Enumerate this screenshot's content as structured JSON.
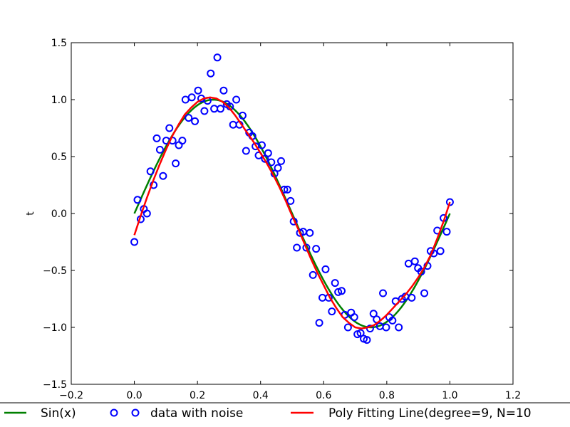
{
  "chart_data": {
    "type": "line",
    "title": "",
    "xlabel": "",
    "ylabel": "t",
    "xlim": [
      -0.2,
      1.2
    ],
    "ylim": [
      -1.5,
      1.5
    ],
    "grid": false,
    "legend_placement": "bottom",
    "x_ticks": [
      "−0.2",
      "0.0",
      "0.2",
      "0.4",
      "0.6",
      "0.8",
      "1.0",
      "1.2"
    ],
    "x_tick_values": [
      -0.2,
      0.0,
      0.2,
      0.4,
      0.6,
      0.8,
      1.0,
      1.2
    ],
    "y_ticks": [
      "1.5",
      "1.0",
      "0.5",
      "0.0",
      "−0.5",
      "−1.0",
      "−1.5"
    ],
    "y_tick_values": [
      1.5,
      1.0,
      0.5,
      0.0,
      -0.5,
      -1.0,
      -1.5
    ],
    "series": [
      {
        "name": "Sin(x)",
        "kind": "line",
        "color": "#008000",
        "function": "sin(2*pi*x)",
        "x_range": [
          0.0,
          1.0
        ]
      },
      {
        "name": "data with noise",
        "kind": "scatter",
        "color": "#0000ff",
        "points": [
          [
            0.0,
            -0.25
          ],
          [
            0.01,
            0.12
          ],
          [
            0.02,
            -0.05
          ],
          [
            0.03,
            0.04
          ],
          [
            0.04,
            0.0
          ],
          [
            0.051,
            0.37
          ],
          [
            0.061,
            0.25
          ],
          [
            0.071,
            0.66
          ],
          [
            0.081,
            0.56
          ],
          [
            0.091,
            0.33
          ],
          [
            0.101,
            0.64
          ],
          [
            0.111,
            0.75
          ],
          [
            0.121,
            0.64
          ],
          [
            0.131,
            0.44
          ],
          [
            0.141,
            0.6
          ],
          [
            0.152,
            0.64
          ],
          [
            0.162,
            1.0
          ],
          [
            0.172,
            0.84
          ],
          [
            0.182,
            1.02
          ],
          [
            0.192,
            0.81
          ],
          [
            0.202,
            1.08
          ],
          [
            0.212,
            1.01
          ],
          [
            0.222,
            0.9
          ],
          [
            0.232,
            0.99
          ],
          [
            0.242,
            1.23
          ],
          [
            0.253,
            0.92
          ],
          [
            0.263,
            1.37
          ],
          [
            0.273,
            0.92
          ],
          [
            0.283,
            1.08
          ],
          [
            0.293,
            0.96
          ],
          [
            0.303,
            0.94
          ],
          [
            0.313,
            0.78
          ],
          [
            0.323,
            1.0
          ],
          [
            0.333,
            0.78
          ],
          [
            0.343,
            0.86
          ],
          [
            0.354,
            0.55
          ],
          [
            0.364,
            0.71
          ],
          [
            0.374,
            0.68
          ],
          [
            0.384,
            0.59
          ],
          [
            0.394,
            0.51
          ],
          [
            0.404,
            0.6
          ],
          [
            0.414,
            0.48
          ],
          [
            0.424,
            0.53
          ],
          [
            0.434,
            0.45
          ],
          [
            0.444,
            0.35
          ],
          [
            0.455,
            0.4
          ],
          [
            0.465,
            0.46
          ],
          [
            0.475,
            0.21
          ],
          [
            0.485,
            0.21
          ],
          [
            0.495,
            0.11
          ],
          [
            0.505,
            -0.07
          ],
          [
            0.515,
            -0.3
          ],
          [
            0.525,
            -0.17
          ],
          [
            0.535,
            -0.16
          ],
          [
            0.545,
            -0.3
          ],
          [
            0.556,
            -0.17
          ],
          [
            0.566,
            -0.54
          ],
          [
            0.576,
            -0.31
          ],
          [
            0.586,
            -0.96
          ],
          [
            0.596,
            -0.74
          ],
          [
            0.606,
            -0.49
          ],
          [
            0.616,
            -0.74
          ],
          [
            0.626,
            -0.86
          ],
          [
            0.636,
            -0.61
          ],
          [
            0.646,
            -0.69
          ],
          [
            0.657,
            -0.68
          ],
          [
            0.667,
            -0.89
          ],
          [
            0.677,
            -1.0
          ],
          [
            0.687,
            -0.87
          ],
          [
            0.697,
            -0.91
          ],
          [
            0.707,
            -1.06
          ],
          [
            0.717,
            -1.05
          ],
          [
            0.727,
            -1.1
          ],
          [
            0.737,
            -1.11
          ],
          [
            0.747,
            -1.01
          ],
          [
            0.758,
            -0.88
          ],
          [
            0.768,
            -0.93
          ],
          [
            0.778,
            -0.99
          ],
          [
            0.788,
            -0.7
          ],
          [
            0.798,
            -1.0
          ],
          [
            0.808,
            -0.91
          ],
          [
            0.818,
            -0.94
          ],
          [
            0.828,
            -0.77
          ],
          [
            0.838,
            -1.0
          ],
          [
            0.848,
            -0.75
          ],
          [
            0.859,
            -0.73
          ],
          [
            0.869,
            -0.44
          ],
          [
            0.879,
            -0.74
          ],
          [
            0.889,
            -0.42
          ],
          [
            0.899,
            -0.48
          ],
          [
            0.909,
            -0.51
          ],
          [
            0.919,
            -0.7
          ],
          [
            0.929,
            -0.46
          ],
          [
            0.939,
            -0.33
          ],
          [
            0.949,
            -0.35
          ],
          [
            0.96,
            -0.15
          ],
          [
            0.97,
            -0.33
          ],
          [
            0.98,
            -0.04
          ],
          [
            0.99,
            -0.16
          ],
          [
            1.0,
            0.1
          ]
        ]
      },
      {
        "name": "Poly Fitting Line(degree=9, N=10",
        "kind": "line",
        "color": "#ff0000",
        "points": [
          [
            0.0,
            -0.19
          ],
          [
            0.02,
            -0.02
          ],
          [
            0.04,
            0.14
          ],
          [
            0.06,
            0.29
          ],
          [
            0.08,
            0.43
          ],
          [
            0.1,
            0.56
          ],
          [
            0.12,
            0.68
          ],
          [
            0.14,
            0.78
          ],
          [
            0.16,
            0.87
          ],
          [
            0.18,
            0.93
          ],
          [
            0.2,
            0.98
          ],
          [
            0.22,
            1.01
          ],
          [
            0.24,
            1.02
          ],
          [
            0.26,
            1.01
          ],
          [
            0.28,
            0.98
          ],
          [
            0.3,
            0.93
          ],
          [
            0.32,
            0.86
          ],
          [
            0.34,
            0.78
          ],
          [
            0.36,
            0.7
          ],
          [
            0.38,
            0.62
          ],
          [
            0.4,
            0.53
          ],
          [
            0.42,
            0.44
          ],
          [
            0.44,
            0.34
          ],
          [
            0.46,
            0.23
          ],
          [
            0.48,
            0.11
          ],
          [
            0.5,
            -0.02
          ],
          [
            0.52,
            -0.14
          ],
          [
            0.54,
            -0.27
          ],
          [
            0.56,
            -0.4
          ],
          [
            0.58,
            -0.52
          ],
          [
            0.6,
            -0.63
          ],
          [
            0.62,
            -0.74
          ],
          [
            0.64,
            -0.83
          ],
          [
            0.66,
            -0.91
          ],
          [
            0.68,
            -0.96
          ],
          [
            0.7,
            -1.0
          ],
          [
            0.72,
            -1.01
          ],
          [
            0.74,
            -1.0
          ],
          [
            0.76,
            -0.98
          ],
          [
            0.78,
            -0.94
          ],
          [
            0.8,
            -0.89
          ],
          [
            0.82,
            -0.83
          ],
          [
            0.84,
            -0.77
          ],
          [
            0.86,
            -0.71
          ],
          [
            0.88,
            -0.64
          ],
          [
            0.9,
            -0.56
          ],
          [
            0.92,
            -0.47
          ],
          [
            0.94,
            -0.36
          ],
          [
            0.96,
            -0.22
          ],
          [
            0.98,
            -0.07
          ],
          [
            1.0,
            0.1
          ]
        ]
      }
    ]
  }
}
